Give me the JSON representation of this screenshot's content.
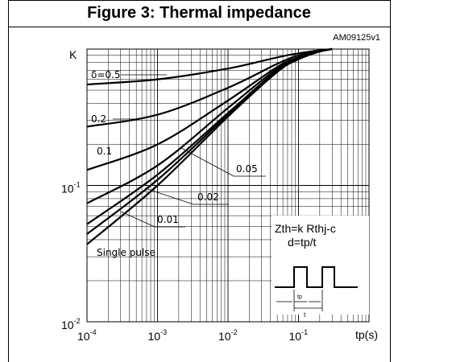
{
  "figure": {
    "title": "Figure 3: Thermal impedance",
    "code": "AM09125v1"
  },
  "chart_data": {
    "type": "line",
    "title": "Figure 3: Thermal impedance",
    "ylabel": "K",
    "xlabel": "tp(s)",
    "xscale": "log",
    "yscale": "log",
    "xlim": [
      0.0001,
      1
    ],
    "ylim": [
      0.01,
      1
    ],
    "grid": true,
    "x_ticks": [
      {
        "base": "10",
        "exp": "-4",
        "value": 0.0001
      },
      {
        "base": "10",
        "exp": "-3",
        "value": 0.001
      },
      {
        "base": "10",
        "exp": "-2",
        "value": 0.01
      },
      {
        "base": "10",
        "exp": "-1",
        "value": 0.1
      }
    ],
    "y_ticks": [
      {
        "base": "10",
        "exp": "-1",
        "value": 0.1
      },
      {
        "base": "10",
        "exp": "-2",
        "value": 0.01
      }
    ],
    "series": [
      {
        "name": "δ=0.5",
        "x": [
          0.0001,
          0.001,
          0.01,
          0.05,
          0.1,
          0.2,
          0.3
        ],
        "y": [
          0.55,
          0.6,
          0.72,
          0.87,
          0.93,
          0.98,
          1.0
        ]
      },
      {
        "name": "0.2",
        "x": [
          0.0001,
          0.001,
          0.01,
          0.05,
          0.1,
          0.2,
          0.3
        ],
        "y": [
          0.27,
          0.33,
          0.52,
          0.78,
          0.9,
          0.97,
          1.0
        ]
      },
      {
        "name": "0.1",
        "x": [
          0.0001,
          0.001,
          0.01,
          0.05,
          0.1,
          0.2,
          0.3
        ],
        "y": [
          0.13,
          0.2,
          0.42,
          0.74,
          0.87,
          0.96,
          1.0
        ]
      },
      {
        "name": "0.05",
        "x": [
          0.0001,
          0.001,
          0.01,
          0.05,
          0.1,
          0.2,
          0.3
        ],
        "y": [
          0.074,
          0.14,
          0.37,
          0.72,
          0.86,
          0.96,
          1.0
        ]
      },
      {
        "name": "0.02",
        "x": [
          0.0001,
          0.001,
          0.01,
          0.05,
          0.1,
          0.2,
          0.3
        ],
        "y": [
          0.052,
          0.12,
          0.34,
          0.7,
          0.85,
          0.96,
          1.0
        ]
      },
      {
        "name": "0.01",
        "x": [
          0.0001,
          0.001,
          0.01,
          0.05,
          0.1,
          0.2,
          0.3
        ],
        "y": [
          0.044,
          0.11,
          0.33,
          0.69,
          0.85,
          0.96,
          1.0
        ]
      },
      {
        "name": "Single pulse",
        "x": [
          0.0001,
          0.001,
          0.01,
          0.05,
          0.1,
          0.2,
          0.3
        ],
        "y": [
          0.037,
          0.1,
          0.32,
          0.68,
          0.84,
          0.96,
          1.0
        ]
      }
    ],
    "annotations": {
      "formula1": "Zth=k Rthj-c",
      "formula2": "d=tp/t",
      "pulse_tp": "tp",
      "pulse_t": "t"
    }
  }
}
